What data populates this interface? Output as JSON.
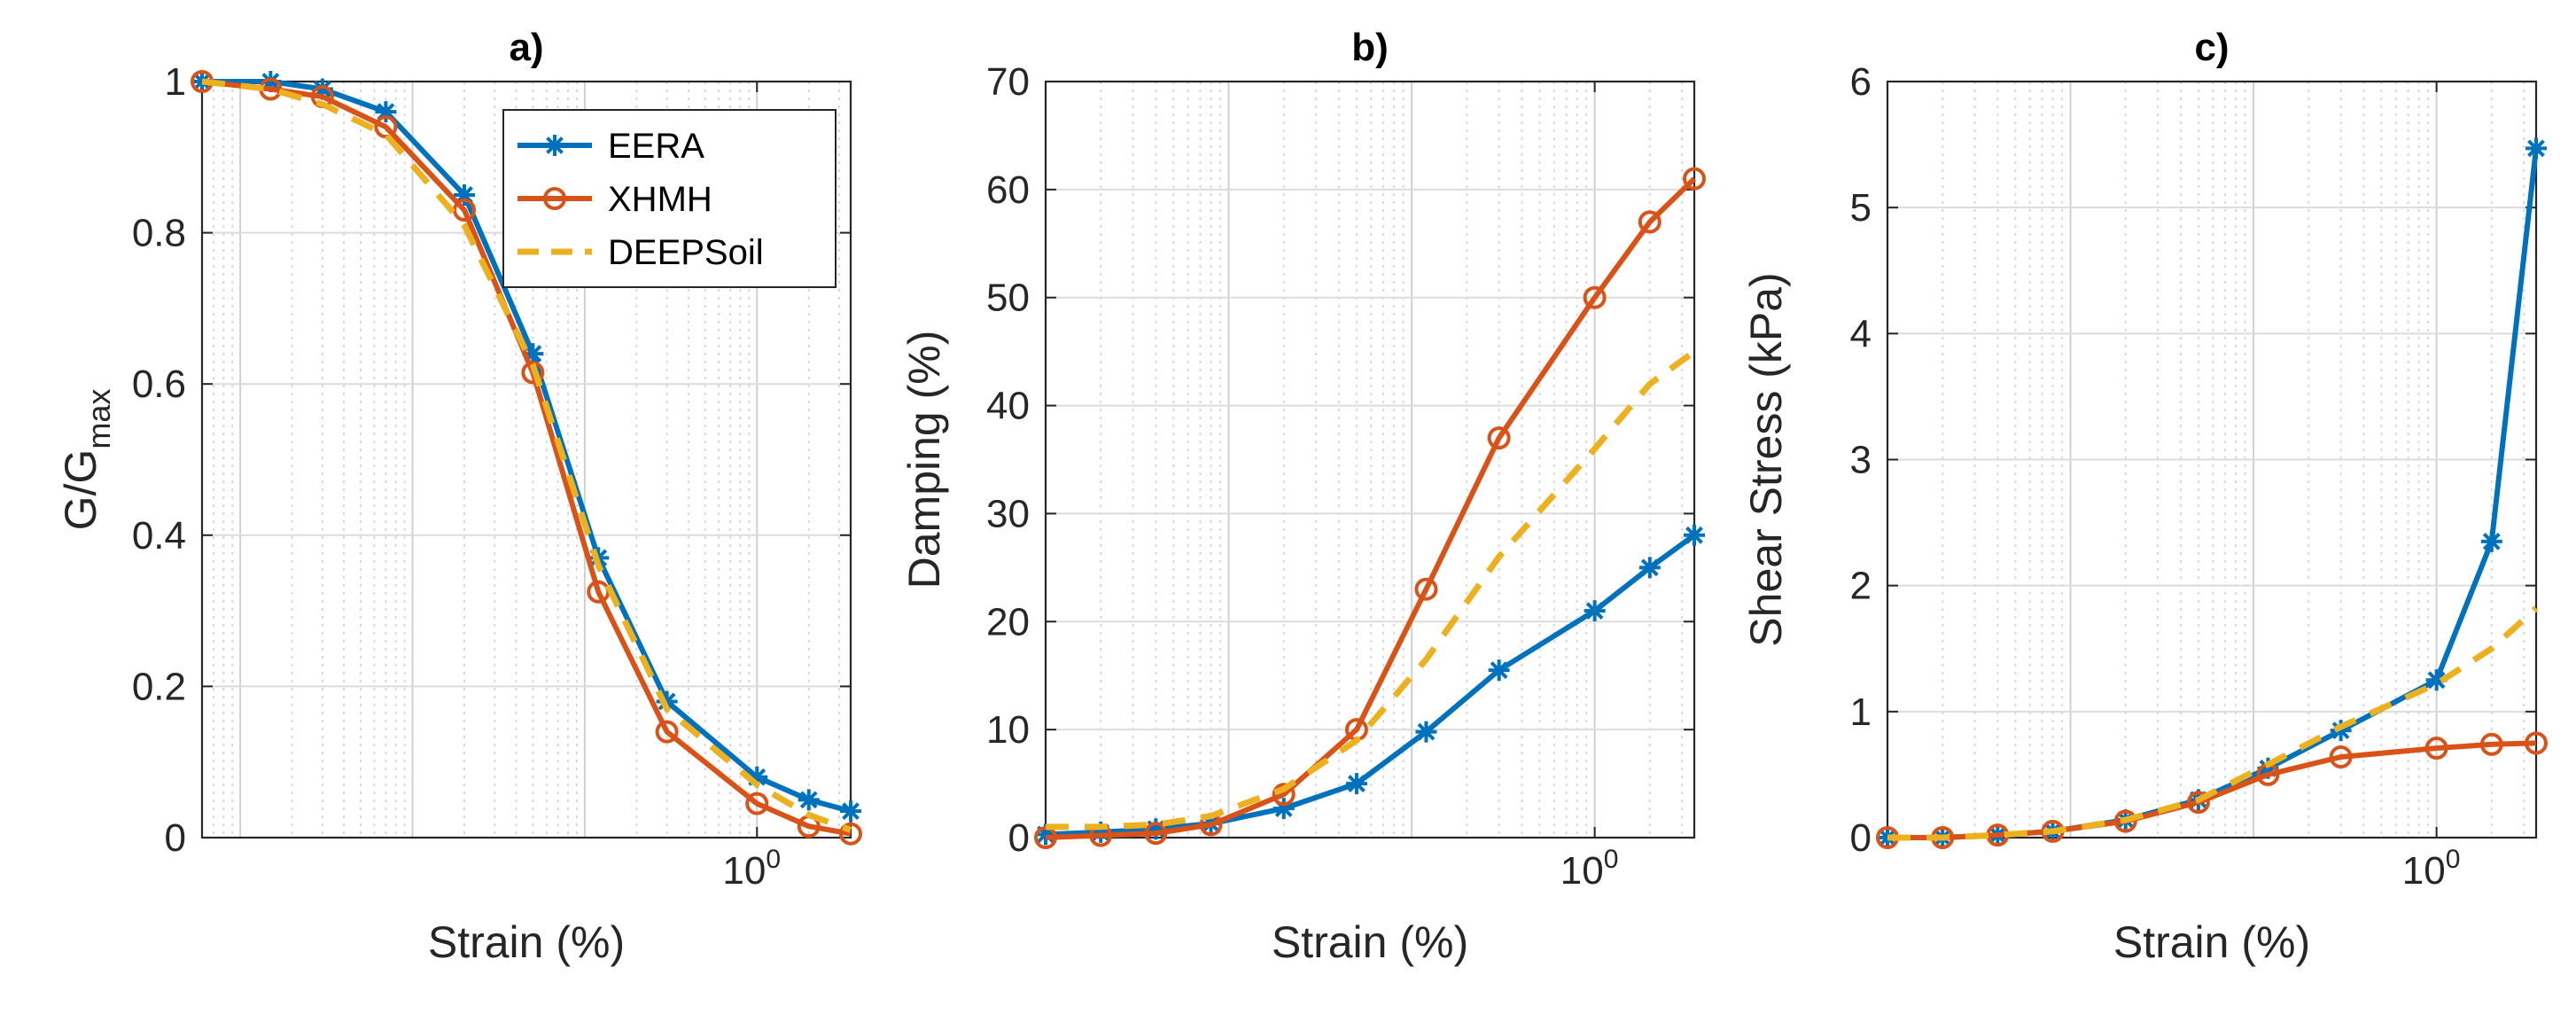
{
  "figure": {
    "legend_location": "top-right"
  },
  "colors": {
    "EERA": "#0072BD",
    "XHMH": "#D95319",
    "DEEPSoil": "#EDB120",
    "grid": "#d9d9d9",
    "axis": "#262626"
  },
  "legend": [
    {
      "name": "EERA",
      "style": "solid-star"
    },
    {
      "name": "XHMH",
      "style": "solid-circle"
    },
    {
      "name": "DEEPSoil",
      "style": "dashed"
    }
  ],
  "chart_data": [
    {
      "id": "a",
      "type": "line",
      "title": "a)",
      "xlabel": "Strain (%)",
      "ylabel": "G/G",
      "ylabel_sub": "max",
      "xscale": "log",
      "xlim": [
        0.0006,
        3.5
      ],
      "ylim": [
        0,
        1
      ],
      "yticks": [
        "0",
        "0.2",
        "0.4",
        "0.6",
        "0.8",
        "1"
      ],
      "ytick_values": [
        0,
        0.2,
        0.4,
        0.6,
        0.8,
        1
      ],
      "xtick_label_base": "10",
      "xtick_label_exp": "0",
      "xtick_value": 1,
      "series": [
        {
          "name": "EERA",
          "marker": "star",
          "dash": false,
          "x": [
            0.0006,
            0.0015,
            0.003,
            0.007,
            0.02,
            0.05,
            0.12,
            0.3,
            1,
            2,
            3.5
          ],
          "y": [
            1.0,
            1.0,
            0.99,
            0.96,
            0.85,
            0.64,
            0.37,
            0.18,
            0.08,
            0.05,
            0.035
          ]
        },
        {
          "name": "XHMH",
          "marker": "circle",
          "dash": false,
          "x": [
            0.0006,
            0.0015,
            0.003,
            0.007,
            0.02,
            0.05,
            0.12,
            0.3,
            1,
            2,
            3.5
          ],
          "y": [
            1.0,
            0.99,
            0.98,
            0.94,
            0.83,
            0.615,
            0.325,
            0.14,
            0.045,
            0.015,
            0.005
          ]
        },
        {
          "name": "DEEPSoil",
          "marker": "none",
          "dash": true,
          "x": [
            0.0006,
            0.0015,
            0.003,
            0.007,
            0.02,
            0.05,
            0.12,
            0.3,
            1,
            2,
            3.5
          ],
          "y": [
            1.0,
            0.99,
            0.97,
            0.93,
            0.81,
            0.625,
            0.36,
            0.17,
            0.07,
            0.03,
            0.01
          ]
        }
      ]
    },
    {
      "id": "b",
      "type": "line",
      "title": "b)",
      "xlabel": "Strain (%)",
      "ylabel": "Damping (%)",
      "ylabel_sub": "",
      "xscale": "log",
      "xlim": [
        0.001,
        3.5
      ],
      "ylim": [
        0,
        70
      ],
      "yticks": [
        "0",
        "10",
        "20",
        "30",
        "40",
        "50",
        "60",
        "70"
      ],
      "ytick_values": [
        0,
        10,
        20,
        30,
        40,
        50,
        60,
        70
      ],
      "xtick_label_base": "10",
      "xtick_label_exp": "0",
      "xtick_value": 1,
      "series": [
        {
          "name": "EERA",
          "marker": "star",
          "dash": false,
          "x": [
            0.001,
            0.002,
            0.004,
            0.008,
            0.02,
            0.05,
            0.12,
            0.3,
            1,
            2,
            3.5
          ],
          "y": [
            0.3,
            0.5,
            0.8,
            1.3,
            2.7,
            5.0,
            9.8,
            15.5,
            21,
            25,
            28
          ]
        },
        {
          "name": "XHMH",
          "marker": "circle",
          "dash": false,
          "x": [
            0.001,
            0.002,
            0.004,
            0.008,
            0.02,
            0.05,
            0.12,
            0.3,
            1,
            2,
            3.5
          ],
          "y": [
            0.0,
            0.2,
            0.4,
            1.2,
            4.0,
            10.0,
            23.0,
            37.0,
            50,
            57,
            61
          ]
        },
        {
          "name": "DEEPSoil",
          "marker": "none",
          "dash": true,
          "x": [
            0.001,
            0.002,
            0.004,
            0.008,
            0.02,
            0.05,
            0.12,
            0.3,
            1,
            2,
            3.5
          ],
          "y": [
            1.0,
            1.0,
            1.2,
            2.0,
            4.5,
            9.0,
            16.5,
            26,
            36,
            42,
            45
          ]
        }
      ]
    },
    {
      "id": "c",
      "type": "line",
      "title": "c)",
      "xlabel": "Strain (%)",
      "ylabel": "Shear Stress (kPa)",
      "ylabel_sub": "",
      "xscale": "log",
      "xlim": [
        0.001,
        3.5
      ],
      "ylim": [
        0,
        6
      ],
      "yticks": [
        "0",
        "1",
        "2",
        "3",
        "4",
        "5",
        "6"
      ],
      "ytick_values": [
        0,
        1,
        2,
        3,
        4,
        5,
        6
      ],
      "xtick_label_base": "10",
      "xtick_label_exp": "0",
      "xtick_value": 1,
      "series": [
        {
          "name": "EERA",
          "marker": "star",
          "dash": false,
          "x": [
            0.001,
            0.002,
            0.004,
            0.008,
            0.02,
            0.05,
            0.12,
            0.3,
            1,
            2,
            3.5
          ],
          "y": [
            0.0,
            0.0,
            0.02,
            0.05,
            0.14,
            0.3,
            0.55,
            0.85,
            1.25,
            2.35,
            5.47
          ]
        },
        {
          "name": "XHMH",
          "marker": "circle",
          "dash": false,
          "x": [
            0.001,
            0.002,
            0.004,
            0.008,
            0.02,
            0.05,
            0.12,
            0.3,
            1,
            2,
            3.5
          ],
          "y": [
            0.0,
            0.0,
            0.02,
            0.05,
            0.13,
            0.28,
            0.5,
            0.64,
            0.71,
            0.74,
            0.75
          ]
        },
        {
          "name": "DEEPSoil",
          "marker": "none",
          "dash": true,
          "x": [
            0.001,
            0.002,
            0.004,
            0.008,
            0.02,
            0.05,
            0.12,
            0.3,
            1,
            2,
            3.5
          ],
          "y": [
            0.0,
            0.0,
            0.02,
            0.05,
            0.14,
            0.3,
            0.58,
            0.88,
            1.22,
            1.5,
            1.82
          ]
        }
      ]
    }
  ]
}
